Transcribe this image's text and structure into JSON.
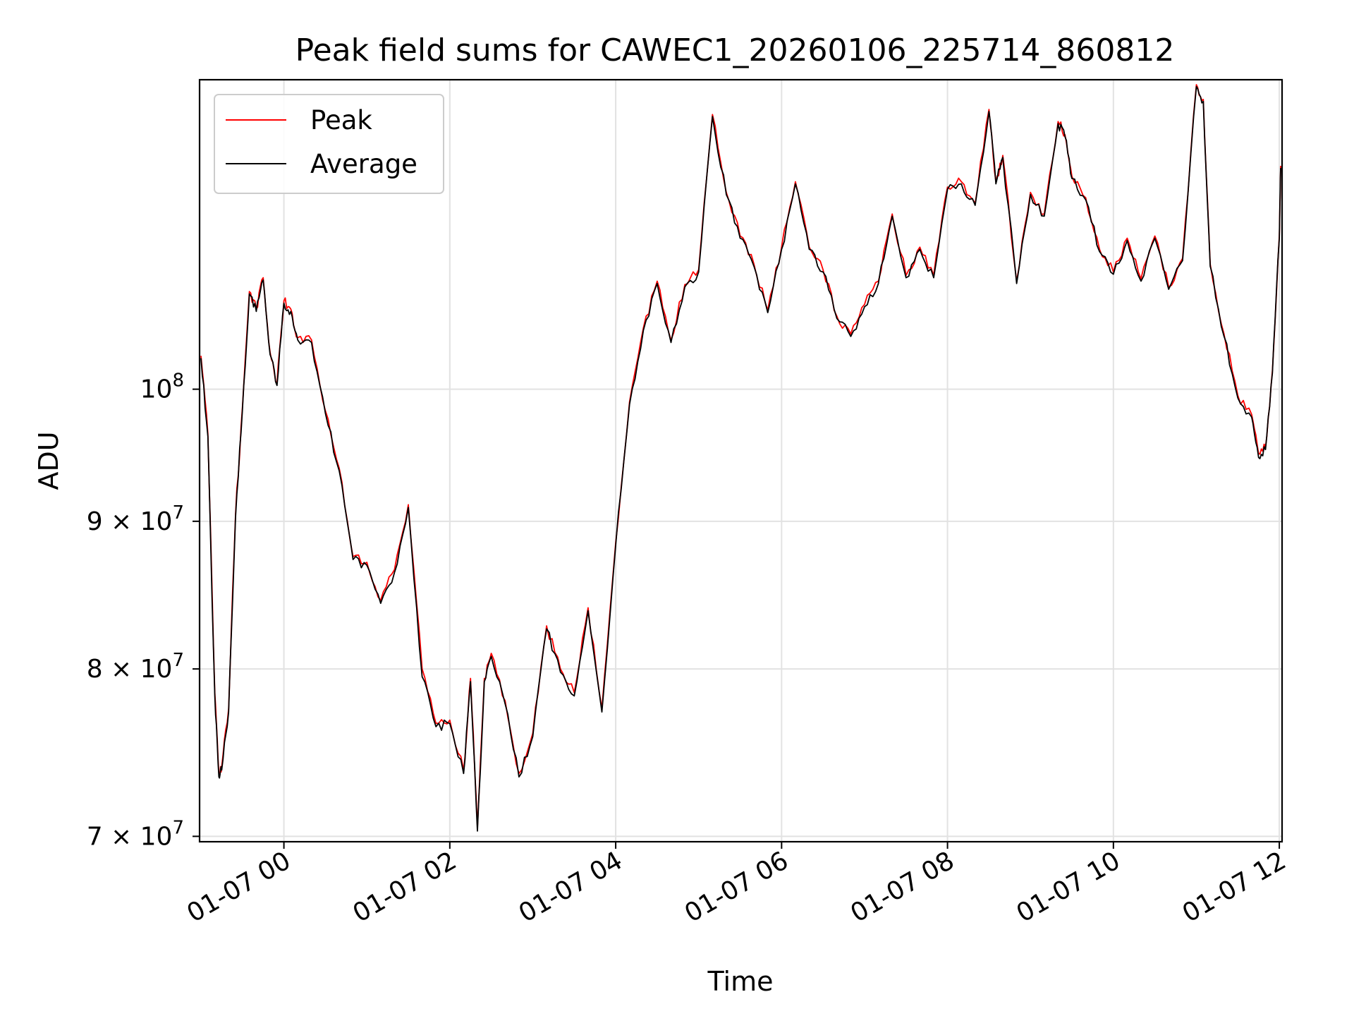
{
  "chart_data": {
    "type": "line",
    "title": "Peak field sums for CAWEC1_20260106_225714_860812",
    "xlabel": "Time",
    "ylabel": "ADU",
    "y_scale": "log",
    "xlim": [
      "2026-01-06 22:59",
      "2026-01-07 12:02"
    ],
    "ylim": [
      69700000,
      128000000
    ],
    "grid": true,
    "legend_position": "upper-left",
    "x_ticks": [
      {
        "value": "2026-01-07 00:00",
        "label": "01-07 00"
      },
      {
        "value": "2026-01-07 02:00",
        "label": "01-07 02"
      },
      {
        "value": "2026-01-07 04:00",
        "label": "01-07 04"
      },
      {
        "value": "2026-01-07 06:00",
        "label": "01-07 06"
      },
      {
        "value": "2026-01-07 08:00",
        "label": "01-07 08"
      },
      {
        "value": "2026-01-07 10:00",
        "label": "01-07 10"
      },
      {
        "value": "2026-01-07 12:00",
        "label": "01-07 12"
      }
    ],
    "y_ticks": [
      {
        "value": 100000000,
        "base": "10",
        "exp": "8"
      },
      {
        "value": 90000000,
        "base": "9 × 10",
        "exp": "7"
      },
      {
        "value": 80000000,
        "base": "8 × 10",
        "exp": "7"
      },
      {
        "value": 70000000,
        "base": "7 × 10",
        "exp": "7"
      }
    ],
    "series": [
      {
        "name": "Peak",
        "color": "#ff0000",
        "x": [
          "2026-01-06 23:00",
          "2026-01-06 23:05",
          "2026-01-06 23:10",
          "2026-01-06 23:13",
          "2026-01-06 23:15",
          "2026-01-06 23:20",
          "2026-01-06 23:25",
          "2026-01-06 23:30",
          "2026-01-06 23:35",
          "2026-01-06 23:40",
          "2026-01-06 23:45",
          "2026-01-06 23:50",
          "2026-01-06 23:55",
          "2026-01-07 00:00",
          "2026-01-07 00:05",
          "2026-01-07 00:10",
          "2026-01-07 00:20",
          "2026-01-07 00:30",
          "2026-01-07 00:40",
          "2026-01-07 00:50",
          "2026-01-07 01:00",
          "2026-01-07 01:10",
          "2026-01-07 01:20",
          "2026-01-07 01:30",
          "2026-01-07 01:40",
          "2026-01-07 01:50",
          "2026-01-07 02:00",
          "2026-01-07 02:10",
          "2026-01-07 02:15",
          "2026-01-07 02:20",
          "2026-01-07 02:25",
          "2026-01-07 02:30",
          "2026-01-07 02:40",
          "2026-01-07 02:50",
          "2026-01-07 03:00",
          "2026-01-07 03:10",
          "2026-01-07 03:20",
          "2026-01-07 03:30",
          "2026-01-07 03:40",
          "2026-01-07 03:50",
          "2026-01-07 04:00",
          "2026-01-07 04:10",
          "2026-01-07 04:20",
          "2026-01-07 04:30",
          "2026-01-07 04:40",
          "2026-01-07 04:50",
          "2026-01-07 05:00",
          "2026-01-07 05:10",
          "2026-01-07 05:20",
          "2026-01-07 05:30",
          "2026-01-07 05:40",
          "2026-01-07 05:50",
          "2026-01-07 06:00",
          "2026-01-07 06:10",
          "2026-01-07 06:20",
          "2026-01-07 06:30",
          "2026-01-07 06:40",
          "2026-01-07 06:50",
          "2026-01-07 07:00",
          "2026-01-07 07:10",
          "2026-01-07 07:20",
          "2026-01-07 07:30",
          "2026-01-07 07:40",
          "2026-01-07 07:50",
          "2026-01-07 08:00",
          "2026-01-07 08:10",
          "2026-01-07 08:20",
          "2026-01-07 08:30",
          "2026-01-07 08:35",
          "2026-01-07 08:40",
          "2026-01-07 08:50",
          "2026-01-07 09:00",
          "2026-01-07 09:10",
          "2026-01-07 09:20",
          "2026-01-07 09:25",
          "2026-01-07 09:30",
          "2026-01-07 09:40",
          "2026-01-07 09:50",
          "2026-01-07 10:00",
          "2026-01-07 10:10",
          "2026-01-07 10:20",
          "2026-01-07 10:30",
          "2026-01-07 10:40",
          "2026-01-07 10:50",
          "2026-01-07 11:00",
          "2026-01-07 11:05",
          "2026-01-07 11:10",
          "2026-01-07 11:20",
          "2026-01-07 11:30",
          "2026-01-07 11:40",
          "2026-01-07 11:45",
          "2026-01-07 11:50",
          "2026-01-07 11:55",
          "2026-01-07 12:00",
          "2026-01-07 12:01"
        ],
        "y": [
          102700000,
          96500000,
          78500000,
          73600000,
          74000000,
          77500000,
          90500000,
          98600000,
          108100000,
          106600000,
          109300000,
          103000000,
          100500000,
          107300000,
          106600000,
          104200000,
          104000000,
          98300000,
          93900000,
          87500000,
          87100000,
          84500000,
          86600000,
          91200000,
          80000000,
          76600000,
          76800000,
          73800000,
          79400000,
          70500000,
          79400000,
          81000000,
          78000000,
          73600000,
          76000000,
          82800000,
          80000000,
          78500000,
          84000000,
          77500000,
          88500000,
          99000000,
          105000000,
          109000000,
          104000000,
          108700000,
          110000000,
          124500000,
          117000000,
          113000000,
          110500000,
          106500000,
          112000000,
          118000000,
          112000000,
          110000000,
          106000000,
          104500000,
          107000000,
          109000000,
          115000000,
          109500000,
          112000000,
          109500000,
          117500000,
          118000000,
          116000000,
          125000000,
          118000000,
          120500000,
          109000000,
          117000000,
          115000000,
          123800000,
          122500000,
          118500000,
          116500000,
          111800000,
          109800000,
          112800000,
          109200000,
          113000000,
          108500000,
          111000000,
          127500000,
          126000000,
          110500000,
          104500000,
          99500000,
          98000000,
          95000000,
          95500000,
          101500000,
          113000000,
          119500000
        ]
      },
      {
        "name": "Average",
        "color": "#000000",
        "x": [
          "2026-01-06 23:00",
          "2026-01-06 23:05",
          "2026-01-06 23:10",
          "2026-01-06 23:13",
          "2026-01-06 23:15",
          "2026-01-06 23:20",
          "2026-01-06 23:25",
          "2026-01-06 23:30",
          "2026-01-06 23:35",
          "2026-01-06 23:40",
          "2026-01-06 23:45",
          "2026-01-06 23:50",
          "2026-01-06 23:55",
          "2026-01-07 00:00",
          "2026-01-07 00:05",
          "2026-01-07 00:10",
          "2026-01-07 00:20",
          "2026-01-07 00:30",
          "2026-01-07 00:40",
          "2026-01-07 00:50",
          "2026-01-07 01:00",
          "2026-01-07 01:10",
          "2026-01-07 01:20",
          "2026-01-07 01:30",
          "2026-01-07 01:40",
          "2026-01-07 01:50",
          "2026-01-07 02:00",
          "2026-01-07 02:10",
          "2026-01-07 02:15",
          "2026-01-07 02:20",
          "2026-01-07 02:25",
          "2026-01-07 02:30",
          "2026-01-07 02:40",
          "2026-01-07 02:50",
          "2026-01-07 03:00",
          "2026-01-07 03:10",
          "2026-01-07 03:20",
          "2026-01-07 03:30",
          "2026-01-07 03:40",
          "2026-01-07 03:50",
          "2026-01-07 04:00",
          "2026-01-07 04:10",
          "2026-01-07 04:20",
          "2026-01-07 04:30",
          "2026-01-07 04:40",
          "2026-01-07 04:50",
          "2026-01-07 05:00",
          "2026-01-07 05:10",
          "2026-01-07 05:20",
          "2026-01-07 05:30",
          "2026-01-07 05:40",
          "2026-01-07 05:50",
          "2026-01-07 06:00",
          "2026-01-07 06:10",
          "2026-01-07 06:20",
          "2026-01-07 06:30",
          "2026-01-07 06:40",
          "2026-01-07 06:50",
          "2026-01-07 07:00",
          "2026-01-07 07:10",
          "2026-01-07 07:20",
          "2026-01-07 07:30",
          "2026-01-07 07:40",
          "2026-01-07 07:50",
          "2026-01-07 08:00",
          "2026-01-07 08:10",
          "2026-01-07 08:20",
          "2026-01-07 08:30",
          "2026-01-07 08:35",
          "2026-01-07 08:40",
          "2026-01-07 08:50",
          "2026-01-07 09:00",
          "2026-01-07 09:10",
          "2026-01-07 09:20",
          "2026-01-07 09:25",
          "2026-01-07 09:30",
          "2026-01-07 09:40",
          "2026-01-07 09:50",
          "2026-01-07 10:00",
          "2026-01-07 10:10",
          "2026-01-07 10:20",
          "2026-01-07 10:30",
          "2026-01-07 10:40",
          "2026-01-07 10:50",
          "2026-01-07 11:00",
          "2026-01-07 11:05",
          "2026-01-07 11:10",
          "2026-01-07 11:20",
          "2026-01-07 11:30",
          "2026-01-07 11:40",
          "2026-01-07 11:45",
          "2026-01-07 11:50",
          "2026-01-07 11:55",
          "2026-01-07 12:00",
          "2026-01-07 12:01"
        ],
        "y": [
          102500000,
          96300000,
          78300000,
          73400000,
          73800000,
          77300000,
          90300000,
          98400000,
          107900000,
          106400000,
          109100000,
          102800000,
          100300000,
          107100000,
          106400000,
          104000000,
          103800000,
          98100000,
          93700000,
          87300000,
          86900000,
          84300000,
          86400000,
          91000000,
          79500000,
          76400000,
          76600000,
          73600000,
          79200000,
          70300000,
          79200000,
          80800000,
          77800000,
          73400000,
          75800000,
          82600000,
          79800000,
          78300000,
          83800000,
          77300000,
          88300000,
          98800000,
          104800000,
          108800000,
          103800000,
          108500000,
          109800000,
          124300000,
          116800000,
          112800000,
          110300000,
          106300000,
          111800000,
          117800000,
          111800000,
          109800000,
          105800000,
          104300000,
          106800000,
          108800000,
          114800000,
          109300000,
          111800000,
          109300000,
          117300000,
          117800000,
          115800000,
          124800000,
          117800000,
          120300000,
          108800000,
          116800000,
          114800000,
          123600000,
          122300000,
          118300000,
          116300000,
          111600000,
          109600000,
          112600000,
          109000000,
          112800000,
          108300000,
          110800000,
          127300000,
          125800000,
          110300000,
          104300000,
          99300000,
          97800000,
          94700000,
          95300000,
          101300000,
          112800000,
          119300000
        ]
      }
    ]
  }
}
